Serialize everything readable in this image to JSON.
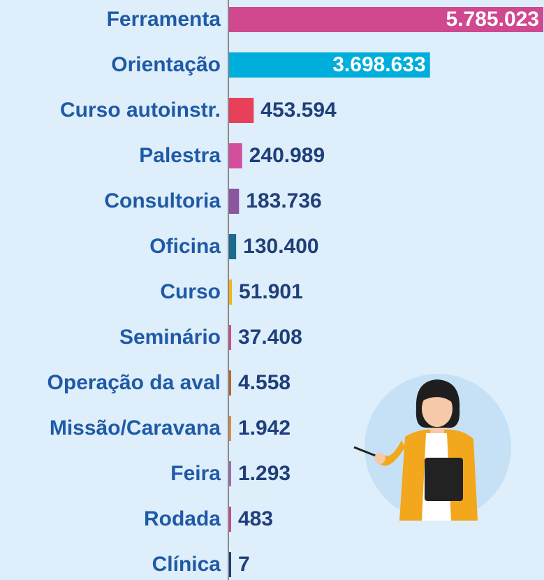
{
  "chart_data": {
    "type": "bar",
    "orientation": "horizontal",
    "categories": [
      "Ferramenta",
      "Orientação",
      "Curso autoinstr.",
      "Palestra",
      "Consultoria",
      "Oficina",
      "Curso",
      "Seminário",
      "Operação da aval",
      "Missão/Caravana",
      "Feira",
      "Rodada",
      "Clínica"
    ],
    "values": [
      5785023,
      3698633,
      453594,
      240989,
      183736,
      130400,
      51901,
      37408,
      4558,
      1942,
      1293,
      483,
      7
    ],
    "value_labels": [
      "5.785.023",
      "3.698.633",
      "453.594",
      "240.989",
      "183.736",
      "130.400",
      "51.901",
      "37.408",
      "4.558",
      "1.942",
      "1.293",
      "483",
      "7"
    ],
    "colors": [
      "#d0488f",
      "#00aedb",
      "#e8405a",
      "#d34f9e",
      "#8b55a0",
      "#1d6a8e",
      "#f2b21c",
      "#d04a8f",
      "#b5662a",
      "#e08a3c",
      "#9b6bb0",
      "#c84a8a",
      "#1f3f7a"
    ]
  }
}
